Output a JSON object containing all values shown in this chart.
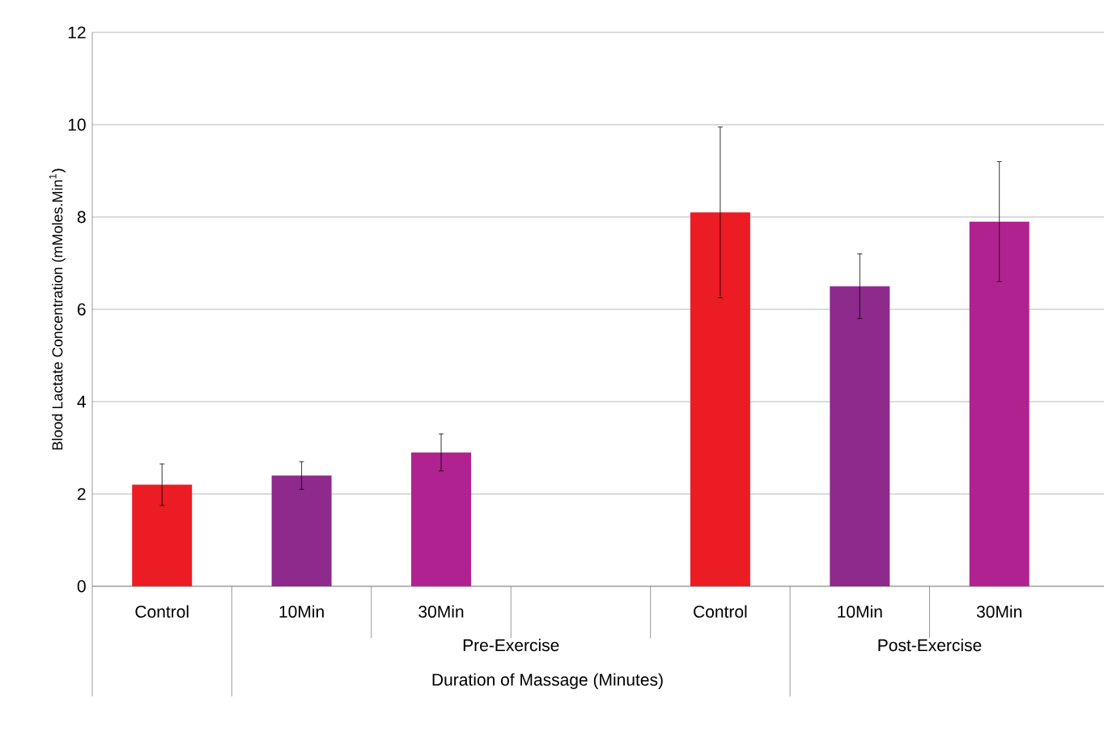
{
  "chart_data": {
    "type": "bar",
    "xlabel": "Duration of Massage (Minutes)",
    "ylabel": "Blood Lactate Concentration (mMoles.Min$^{1}$)",
    "categories": [
      "Control",
      "10Min",
      "30Min",
      null,
      "Control",
      "10Min",
      "30Min"
    ],
    "values": [
      2.2,
      2.4,
      2.9,
      null,
      8.1,
      6.5,
      7.9
    ],
    "errors": [
      0.45,
      0.3,
      0.4,
      null,
      1.85,
      0.7,
      1.3
    ],
    "colors": [
      "#ec1c24",
      "#8e2a8c",
      "#b0228f",
      null,
      "#ec1c24",
      "#8e2a8c",
      "#b0228f"
    ],
    "annotations": [
      "Pre-Exercise",
      "Post-Exercise"
    ],
    "ylim": [
      0,
      12
    ],
    "yticks": [
      0,
      2,
      4,
      6,
      8,
      10,
      12
    ],
    "grid": "y"
  }
}
